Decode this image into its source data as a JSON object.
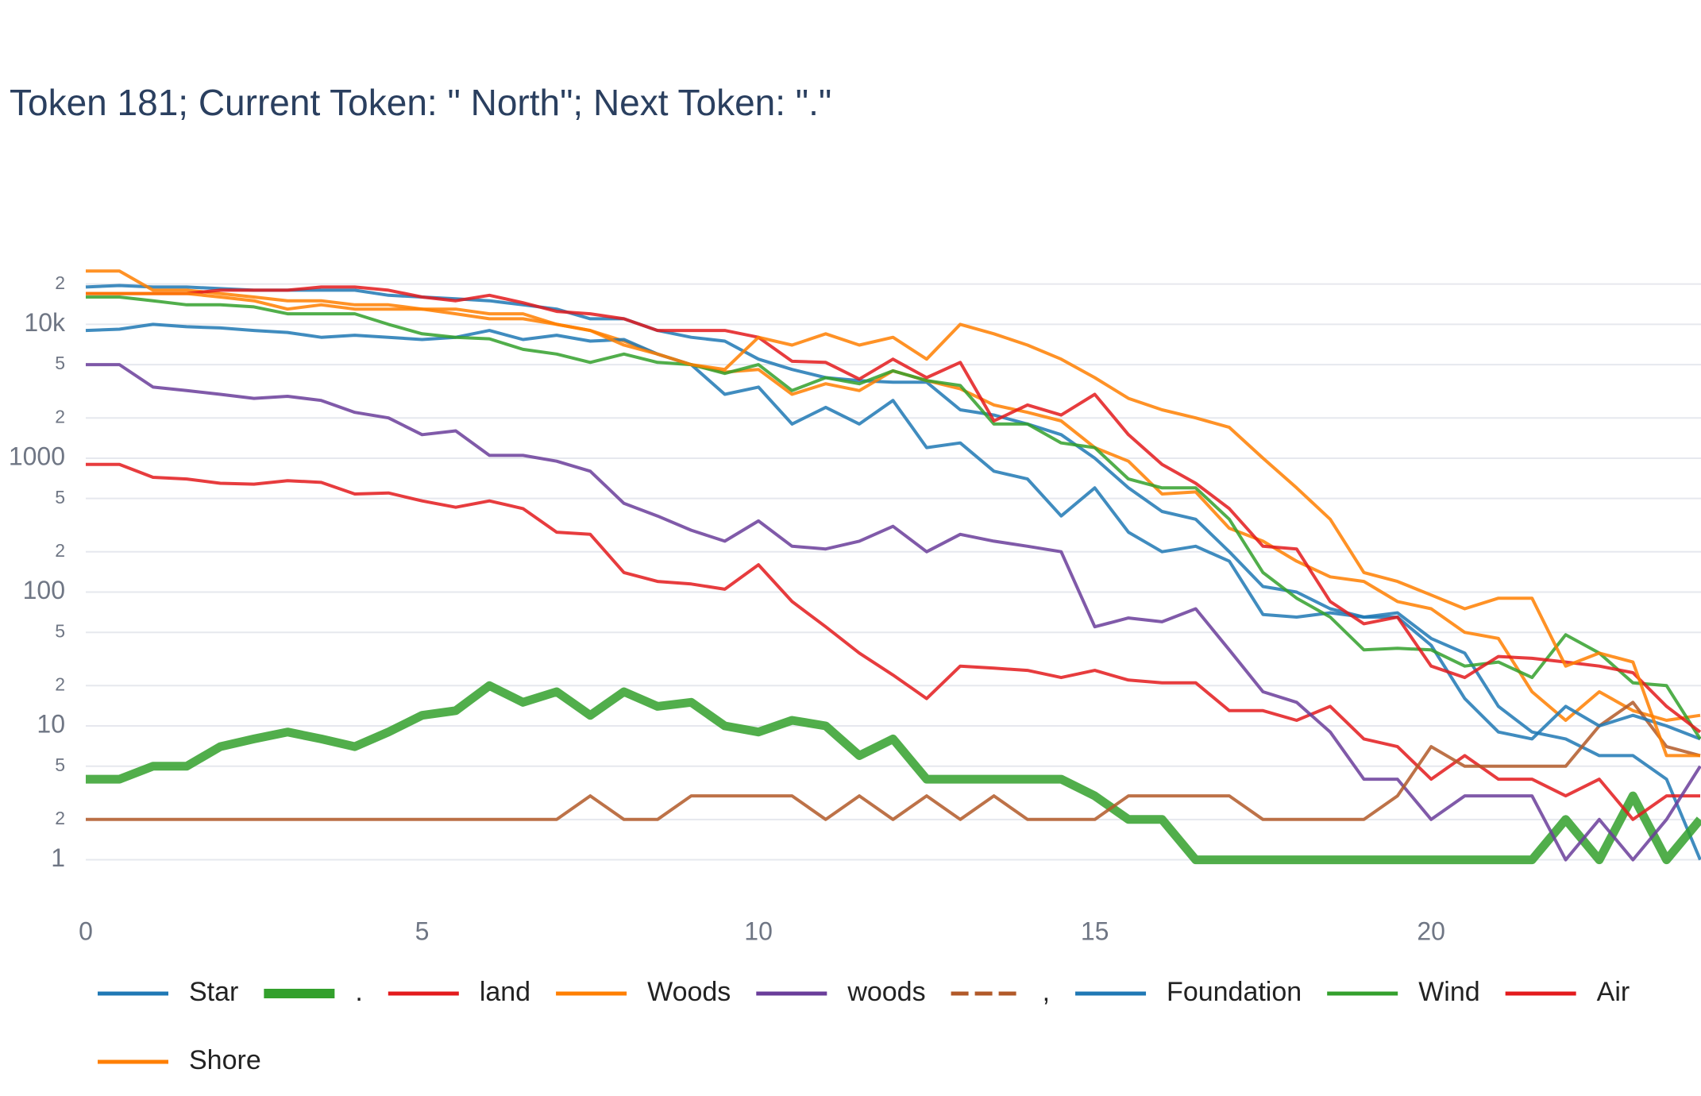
{
  "chart_data": {
    "type": "line",
    "title": "Token 181; Current Token: \" North\"; Next Token: \".\"",
    "log_y": true,
    "grid": true,
    "legend": "bottom",
    "x": [
      0,
      0.5,
      1,
      1.5,
      2,
      2.5,
      3,
      3.5,
      4,
      4.5,
      5,
      5.5,
      6,
      6.5,
      7,
      7.5,
      8,
      8.5,
      9,
      9.5,
      10,
      10.5,
      11,
      11.5,
      12,
      12.5,
      13,
      13.5,
      14,
      14.5,
      15,
      15.5,
      16,
      16.5,
      17,
      17.5,
      18,
      18.5,
      19,
      19.5,
      20,
      20.5,
      21,
      21.5,
      22,
      22.5,
      23,
      23.5,
      24
    ],
    "xlim": [
      0,
      24
    ],
    "xticks": [
      0,
      5,
      10,
      15,
      20
    ],
    "ylim": [
      0.45,
      30000
    ],
    "yticks": [
      1,
      2,
      5,
      10,
      {
        "value": 20,
        "label": "2"
      },
      {
        "value": 50,
        "label": "5"
      },
      100,
      {
        "value": 200,
        "label": "2"
      },
      {
        "value": 500,
        "label": "5"
      },
      1000,
      {
        "value": 2000,
        "label": "2"
      },
      {
        "value": 5000,
        "label": "5"
      },
      {
        "value": 10000,
        "label": "10k"
      },
      {
        "value": 20000,
        "label": "2"
      }
    ],
    "series": [
      {
        "name": "Star",
        "color": "#1f78b4",
        "line_width": 4,
        "dash": false,
        "values": [
          19000,
          19500,
          19000,
          19000,
          18500,
          18000,
          18000,
          18000,
          18000,
          16500,
          16000,
          15500,
          15000,
          14000,
          13000,
          11000,
          11000,
          9000,
          8000,
          7500,
          5500,
          4600,
          4000,
          3800,
          3700,
          3700,
          2300,
          2100,
          1800,
          1500,
          1000,
          600,
          400,
          350,
          200,
          110,
          100,
          75,
          65,
          70,
          45,
          35,
          14,
          9,
          8,
          6,
          6,
          4,
          1
        ]
      },
      {
        "name": ".",
        "color": "#33a02c",
        "line_width": 11,
        "dash": false,
        "values": [
          4,
          4,
          5,
          5,
          7,
          8,
          9,
          8,
          7,
          9,
          12,
          13,
          20,
          15,
          18,
          12,
          18,
          14,
          15,
          10,
          9,
          11,
          10,
          6,
          8,
          4,
          4,
          4,
          4,
          4,
          3,
          2,
          2,
          1,
          1,
          1,
          1,
          1,
          1,
          1,
          1,
          1,
          1,
          1,
          2,
          1,
          3,
          1,
          2
        ]
      },
      {
        "name": "land",
        "color": "#e31a1c",
        "line_width": 4,
        "dash": false,
        "values": [
          900,
          900,
          720,
          700,
          650,
          640,
          680,
          660,
          540,
          550,
          480,
          430,
          480,
          420,
          280,
          270,
          140,
          120,
          115,
          105,
          160,
          85,
          55,
          35,
          24,
          16,
          28,
          27,
          26,
          23,
          26,
          22,
          21,
          21,
          13,
          13,
          11,
          14,
          8,
          7,
          4,
          6,
          4,
          4,
          3,
          4,
          2,
          3,
          3
        ]
      },
      {
        "name": "Woods",
        "color": "#ff7f00",
        "line_width": 4,
        "dash": false,
        "values": [
          25000,
          25000,
          18000,
          18000,
          17000,
          16000,
          15000,
          15000,
          14000,
          14000,
          13000,
          13000,
          12000,
          12000,
          10000,
          9000,
          7500,
          6000,
          5000,
          4400,
          4600,
          3000,
          3600,
          3200,
          4500,
          3800,
          3300,
          2500,
          2200,
          1900,
          1200,
          950,
          540,
          560,
          300,
          240,
          170,
          130,
          120,
          85,
          75,
          50,
          45,
          18,
          11,
          18,
          13,
          11,
          12
        ]
      },
      {
        "name": "woods",
        "color": "#6a3d9a",
        "line_width": 4,
        "dash": false,
        "values": [
          5000,
          5000,
          3400,
          3200,
          3000,
          2800,
          2900,
          2700,
          2200,
          2000,
          1500,
          1600,
          1050,
          1050,
          950,
          800,
          460,
          370,
          290,
          240,
          340,
          220,
          210,
          240,
          310,
          200,
          270,
          240,
          220,
          200,
          55,
          64,
          60,
          75,
          37,
          18,
          15,
          9,
          4,
          4,
          2,
          3,
          3,
          3,
          1,
          2,
          1,
          2,
          5
        ]
      },
      {
        "name": ",",
        "color": "#b15928",
        "line_width": 4,
        "dash": true,
        "values": [
          2,
          2,
          2,
          2,
          2,
          2,
          2,
          2,
          2,
          2,
          2,
          2,
          2,
          2,
          2,
          3,
          2,
          2,
          3,
          3,
          3,
          3,
          2,
          3,
          2,
          3,
          2,
          3,
          2,
          2,
          2,
          3,
          3,
          3,
          3,
          2,
          2,
          2,
          2,
          3,
          7,
          5,
          5,
          5,
          5,
          10,
          15,
          7,
          6
        ]
      },
      {
        "name": "Foundation",
        "color": "#1f78b4",
        "line_width": 4,
        "dash": false,
        "values": [
          9000,
          9200,
          10000,
          9600,
          9400,
          9000,
          8700,
          8000,
          8300,
          8000,
          7700,
          8000,
          9000,
          7700,
          8300,
          7500,
          7700,
          6000,
          5000,
          3000,
          3400,
          1800,
          2400,
          1800,
          2700,
          1200,
          1300,
          800,
          700,
          370,
          600,
          280,
          200,
          220,
          170,
          68,
          65,
          70,
          65,
          65,
          40,
          16,
          9,
          8,
          14,
          10,
          12,
          10,
          8
        ]
      },
      {
        "name": "Wind",
        "color": "#33a02c",
        "line_width": 4,
        "dash": false,
        "values": [
          16000,
          16000,
          15000,
          14000,
          14000,
          13500,
          12000,
          12000,
          12000,
          10000,
          8500,
          8000,
          7800,
          6500,
          6000,
          5200,
          6000,
          5200,
          5000,
          4300,
          5000,
          3200,
          4000,
          3600,
          4500,
          3800,
          3500,
          1800,
          1800,
          1300,
          1200,
          700,
          600,
          600,
          350,
          140,
          90,
          65,
          37,
          38,
          37,
          28,
          30,
          23,
          48,
          35,
          21,
          20,
          8
        ]
      },
      {
        "name": "Air",
        "color": "#e31a1c",
        "line_width": 4,
        "dash": false,
        "values": [
          17000,
          17000,
          17000,
          17000,
          18000,
          18000,
          18000,
          19000,
          19000,
          18000,
          16000,
          15000,
          16500,
          14500,
          12500,
          12000,
          11000,
          9000,
          9000,
          9000,
          8000,
          5300,
          5200,
          3900,
          5500,
          4000,
          5200,
          1900,
          2500,
          2100,
          3000,
          1500,
          900,
          650,
          420,
          220,
          210,
          85,
          58,
          65,
          28,
          23,
          33,
          32,
          30,
          28,
          25,
          14,
          9
        ]
      },
      {
        "name": "Shore",
        "color": "#ff7f00",
        "line_width": 4,
        "dash": false,
        "values": [
          17000,
          17000,
          17000,
          17000,
          16000,
          15000,
          13000,
          14000,
          13000,
          13000,
          13000,
          12000,
          11000,
          11000,
          10000,
          9000,
          7000,
          6000,
          5000,
          4600,
          8000,
          7000,
          8500,
          7000,
          8000,
          5500,
          10000,
          8500,
          7000,
          5500,
          4000,
          2800,
          2300,
          2000,
          1700,
          1000,
          600,
          350,
          140,
          120,
          95,
          75,
          90,
          90,
          28,
          35,
          30,
          6,
          6
        ]
      }
    ]
  }
}
